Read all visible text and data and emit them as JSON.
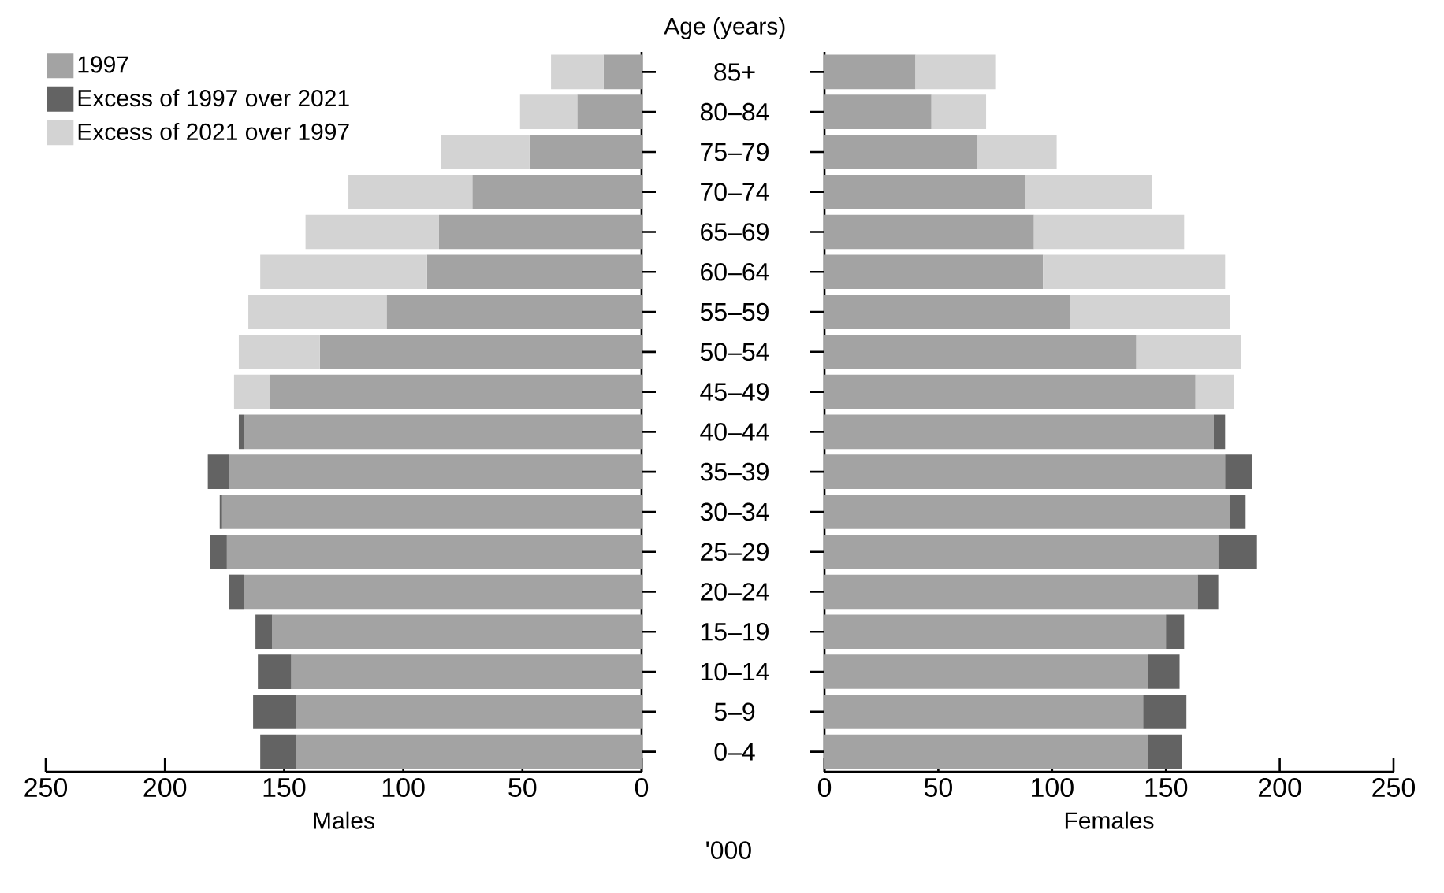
{
  "chart_data": [
    {
      "type": "bar",
      "orientation": "horizontal",
      "stacked": true,
      "ylabel": "Age (years)",
      "xlabel": "Males",
      "annotations": [
        "'000"
      ],
      "legend": "top left",
      "categories": [
        "85+",
        "80–84",
        "75–79",
        "70–74",
        "65–69",
        "60–64",
        "55–59",
        "50–54",
        "45–49",
        "40–44",
        "35–39",
        "30–34",
        "25–29",
        "20–24",
        "15–19",
        "10–14",
        "5–9",
        "0–4"
      ],
      "xlim": [
        250,
        0
      ],
      "xticks": [
        250,
        200,
        150,
        100,
        50,
        0
      ],
      "series": [
        {
          "name": "1997",
          "color": "#a3a3a3",
          "values": [
            16,
            27,
            47,
            71,
            85,
            90,
            107,
            135,
            156,
            167,
            173,
            176,
            174,
            167,
            155,
            147,
            145,
            145
          ]
        },
        {
          "name": "Excess of 1997 over 2021",
          "color": "#636363",
          "values": [
            null,
            null,
            null,
            null,
            null,
            null,
            null,
            null,
            null,
            2,
            9,
            1,
            7,
            6,
            7,
            14,
            18,
            15
          ]
        },
        {
          "name": "Excess of 2021 over 1997",
          "color": "#d3d3d3",
          "values": [
            22,
            24,
            37,
            52,
            56,
            70,
            58,
            34,
            15,
            null,
            null,
            null,
            null,
            null,
            null,
            null,
            null,
            null
          ]
        }
      ]
    },
    {
      "type": "bar",
      "orientation": "horizontal",
      "stacked": true,
      "xlabel": "Females",
      "categories": [
        null,
        null,
        null,
        null,
        null,
        null,
        null,
        null,
        null,
        null,
        null,
        null,
        null,
        null,
        null,
        null,
        null,
        null
      ],
      "xlim": [
        0,
        250
      ],
      "xticks": [
        0,
        50,
        100,
        150,
        200,
        250
      ],
      "series": [
        {
          "color": "#a3a3a3",
          "values": [
            40,
            47,
            67,
            88,
            92,
            96,
            108,
            137,
            163,
            171,
            176,
            178,
            173,
            164,
            150,
            142,
            140,
            142
          ]
        },
        {
          "color": "#636363",
          "values": [
            null,
            null,
            null,
            null,
            null,
            null,
            null,
            null,
            null,
            5,
            12,
            7,
            17,
            9,
            8,
            14,
            19,
            15
          ]
        },
        {
          "color": "#d3d3d3",
          "values": [
            35,
            24,
            35,
            56,
            66,
            80,
            70,
            46,
            17,
            null,
            null,
            null,
            null,
            null,
            null,
            null,
            null,
            null
          ]
        }
      ]
    }
  ]
}
